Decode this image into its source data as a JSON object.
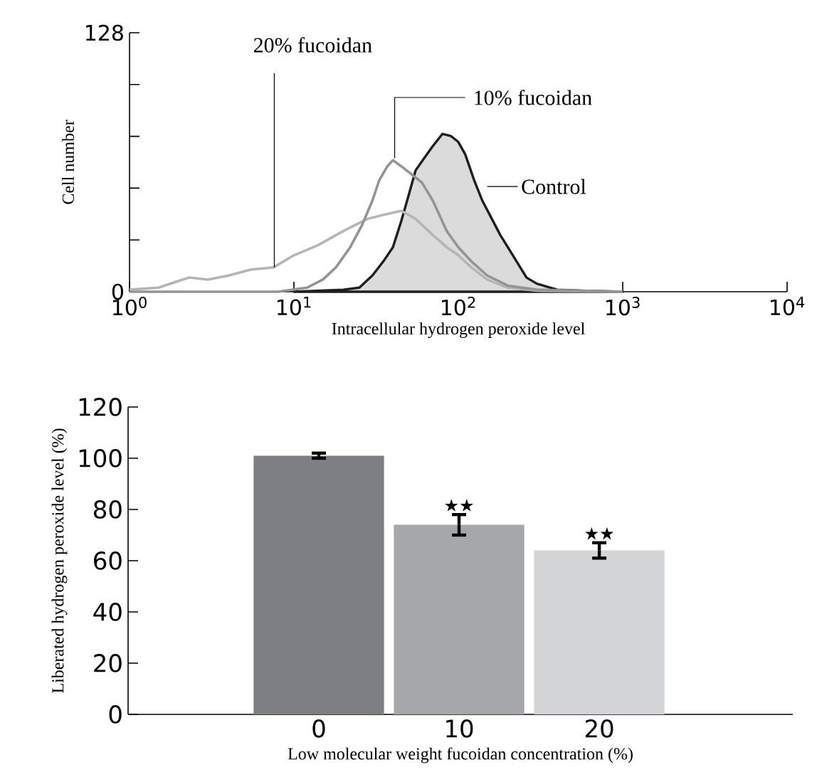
{
  "chart_data": [
    {
      "type": "line",
      "xlabel": "Intracellular hydrogen peroxide level",
      "ylabel": "Cell number",
      "log": "x",
      "xlim": [
        1,
        10000
      ],
      "xticks": [
        {
          "value": 1,
          "label": "10$^{0}$"
        },
        {
          "value": 10,
          "label": "10$^{1}$"
        },
        {
          "value": 100,
          "label": "10$^{2}$"
        },
        {
          "value": 1000,
          "label": "10$^{3}$"
        },
        {
          "value": 10000,
          "label": "10$^{4}$"
        }
      ],
      "ylim": [
        0,
        128
      ],
      "yticks": [
        0,
        {
          "value": 25.6,
          "label": null
        },
        {
          "value": 51.2,
          "label": null
        },
        {
          "value": 76.8,
          "label": null
        },
        {
          "value": 102.4,
          "label": null
        },
        128
      ],
      "series": [
        {
          "name": "20% fucoidan",
          "color": "#b5b5b5",
          "x": [
            1,
            1.5,
            2.3,
            3,
            4,
            5.5,
            7.5,
            10,
            14,
            20,
            28,
            35,
            45,
            55,
            70,
            85,
            100,
            120,
            150,
            200,
            300,
            1000
          ],
          "values": [
            1,
            2,
            7,
            6,
            8,
            11,
            12,
            18,
            23,
            30,
            36,
            38,
            40,
            36,
            28,
            22,
            18,
            12,
            6,
            2,
            0.5,
            0
          ]
        },
        {
          "name": "10% fucoidan",
          "color": "#949494",
          "x": [
            1,
            8,
            12,
            15,
            18,
            22,
            26,
            30,
            33,
            37,
            40,
            45,
            52,
            60,
            70,
            85,
            100,
            120,
            150,
            200,
            300,
            1000
          ],
          "values": [
            0,
            0,
            2,
            6,
            12,
            22,
            33,
            45,
            55,
            62,
            65,
            62,
            58,
            54,
            45,
            30,
            22,
            15,
            8,
            3,
            1,
            0
          ]
        },
        {
          "name": "Control",
          "type": "area",
          "color": "#1e1e1e",
          "x": [
            10,
            20,
            25,
            30,
            35,
            40,
            45,
            50,
            55,
            62,
            70,
            80,
            90,
            100,
            110,
            125,
            140,
            160,
            180,
            200,
            230,
            260,
            300,
            400,
            600,
            1000
          ],
          "values": [
            0,
            1,
            2,
            8,
            15,
            22,
            35,
            48,
            60,
            66,
            72,
            78,
            77,
            74,
            68,
            55,
            45,
            36,
            28,
            22,
            14,
            7,
            4,
            1,
            0.5,
            0
          ]
        }
      ]
    },
    {
      "type": "bar",
      "xlabel": "Low molecular weight fucoidan concentration (%)",
      "ylabel": "Liberated hydrogen peroxide level (%)",
      "categories": [
        "0",
        "10",
        "20"
      ],
      "values": [
        101,
        74,
        64
      ],
      "errors": [
        1,
        4,
        3
      ],
      "colors": [
        "#7e7f84",
        "#a6a7ab",
        "#d3d4d6"
      ],
      "ylim": [
        0,
        120
      ],
      "yticks": [
        0,
        20,
        40,
        60,
        80,
        100,
        120
      ],
      "annotations": [
        {
          "text": "★★",
          "x": "10",
          "y": 78
        },
        {
          "text": "★★",
          "x": "20",
          "y": 67
        }
      ]
    }
  ]
}
